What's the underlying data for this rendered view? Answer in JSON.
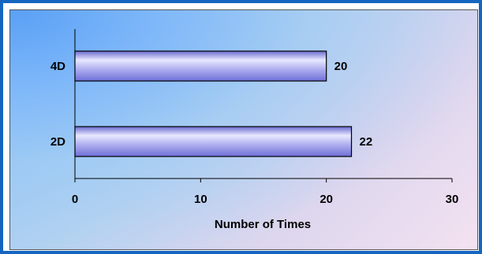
{
  "chart_data": {
    "type": "bar",
    "orientation": "horizontal",
    "categories": [
      "4D",
      "2D"
    ],
    "values": [
      20,
      22
    ],
    "data_labels": [
      "20",
      "22"
    ],
    "title": "",
    "xlabel": "Number of Times",
    "ylabel": "",
    "xlim": [
      0,
      30
    ],
    "x_ticks": [
      "0",
      "10",
      "20",
      "30"
    ],
    "grid": false,
    "legend": "none",
    "bar_color": "#8f8fe6",
    "bar_highlight": "#e8e8ff",
    "bar_border": "#000000"
  }
}
